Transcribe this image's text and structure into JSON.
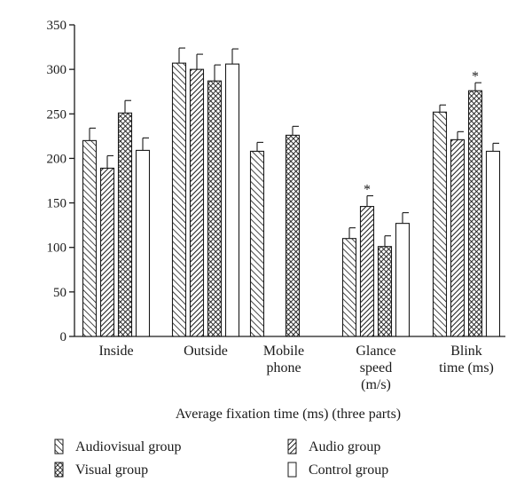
{
  "chart_data": {
    "type": "bar",
    "xlabel": "Average fixation time (ms) (three parts)",
    "ylabel": "",
    "ylim": [
      0,
      350
    ],
    "yticks": [
      0,
      50,
      100,
      150,
      200,
      250,
      300,
      350
    ],
    "grid": false,
    "legend_position": "bottom",
    "categories": [
      {
        "lines": [
          "Inside"
        ]
      },
      {
        "lines": [
          "Outside"
        ]
      },
      {
        "lines": [
          "Mobile",
          "phone"
        ]
      },
      {
        "lines": [
          "Glance",
          "speed",
          "(m/s)"
        ]
      },
      {
        "lines": [
          "Blink",
          "time (ms)"
        ]
      }
    ],
    "series": [
      {
        "name": "Audiovisual group",
        "pattern": "forward-hatch",
        "values": [
          220,
          307,
          208,
          110,
          252
        ],
        "errors": [
          14,
          17,
          10,
          12,
          8
        ]
      },
      {
        "name": "Audio group",
        "pattern": "back-hatch",
        "values": [
          189,
          300,
          null,
          146,
          221
        ],
        "errors": [
          14,
          17,
          null,
          12,
          9
        ]
      },
      {
        "name": "Visual group",
        "pattern": "crosshatch",
        "values": [
          251,
          287,
          226,
          101,
          276
        ],
        "errors": [
          14,
          18,
          10,
          12,
          9
        ]
      },
      {
        "name": "Control group",
        "pattern": "none",
        "values": [
          209,
          306,
          null,
          127,
          208
        ],
        "errors": [
          14,
          17,
          null,
          12,
          9
        ]
      }
    ],
    "annotations": [
      {
        "category": 3,
        "series": 1,
        "text": "*"
      },
      {
        "category": 4,
        "series": 2,
        "text": "*"
      }
    ]
  }
}
